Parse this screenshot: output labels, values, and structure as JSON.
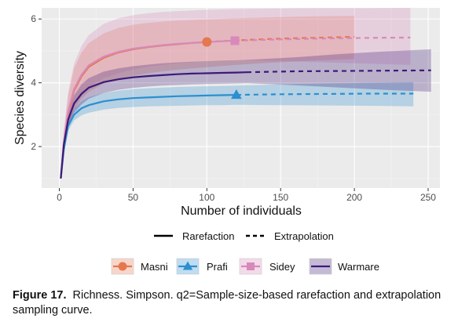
{
  "chart_data": {
    "type": "line",
    "xlabel": "Number of individuals",
    "ylabel": "Species diversity",
    "xlim": [
      -12,
      258
    ],
    "ylim": [
      0.7,
      6.35
    ],
    "xticks": [
      0,
      50,
      100,
      150,
      200,
      250
    ],
    "yticks": [
      2,
      4,
      6
    ],
    "grid": true,
    "legend_linetype": {
      "rarefaction": "Rarefaction",
      "extrapolation": "Extrapolation"
    },
    "series": [
      {
        "name": "Masni",
        "color": "#e5784f",
        "marker": "circle",
        "observed": {
          "x": 100,
          "y": 5.28
        },
        "rarefaction": {
          "x": [
            1,
            3,
            6,
            10,
            15,
            20,
            30,
            40,
            50,
            60,
            70,
            80,
            90,
            100
          ],
          "y": [
            1.0,
            2.1,
            3.05,
            3.75,
            4.2,
            4.5,
            4.78,
            4.95,
            5.05,
            5.12,
            5.17,
            5.21,
            5.25,
            5.28
          ]
        },
        "extrapolation": {
          "x": [
            100,
            120,
            140,
            160,
            180,
            200
          ],
          "y": [
            5.28,
            5.33,
            5.37,
            5.4,
            5.42,
            5.44
          ]
        },
        "band_upper": [
          1.0,
          2.4,
          3.6,
          4.45,
          4.95,
          5.25,
          5.55,
          5.72,
          5.82,
          5.88,
          5.92,
          5.95,
          5.97,
          5.99,
          6.02,
          6.05,
          6.07,
          6.09,
          6.1
        ],
        "band_lower": [
          1.0,
          1.8,
          2.6,
          3.15,
          3.5,
          3.72,
          3.98,
          4.12,
          4.22,
          4.3,
          4.36,
          4.41,
          4.45,
          4.49,
          4.56,
          4.62,
          4.67,
          4.71,
          4.74
        ]
      },
      {
        "name": "Prafi",
        "color": "#2c8fd0",
        "marker": "triangle",
        "observed": {
          "x": 120,
          "y": 3.62
        },
        "rarefaction": {
          "x": [
            1,
            3,
            6,
            10,
            15,
            20,
            30,
            40,
            50,
            60,
            70,
            80,
            90,
            100,
            110,
            120
          ],
          "y": [
            1.0,
            1.9,
            2.65,
            3.0,
            3.2,
            3.3,
            3.42,
            3.48,
            3.52,
            3.54,
            3.56,
            3.58,
            3.59,
            3.6,
            3.61,
            3.62
          ]
        },
        "extrapolation": {
          "x": [
            120,
            150,
            180,
            210,
            240
          ],
          "y": [
            3.62,
            3.64,
            3.65,
            3.66,
            3.66
          ]
        },
        "band_upper": [
          1.0,
          2.0,
          2.8,
          3.18,
          3.42,
          3.55,
          3.68,
          3.75,
          3.8,
          3.83,
          3.85,
          3.87,
          3.88,
          3.89,
          3.9,
          3.91,
          3.95,
          3.98,
          4.0,
          4.02
        ],
        "band_lower": [
          1.0,
          1.8,
          2.5,
          2.82,
          2.98,
          3.06,
          3.16,
          3.21,
          3.24,
          3.26,
          3.27,
          3.28,
          3.29,
          3.3,
          3.3,
          3.31,
          3.3,
          3.29,
          3.28,
          3.26
        ]
      },
      {
        "name": "Sidey",
        "color": "#d889b9",
        "marker": "square",
        "observed": {
          "x": 119,
          "y": 5.32
        },
        "rarefaction": {
          "x": [
            1,
            3,
            6,
            10,
            15,
            20,
            30,
            40,
            50,
            60,
            70,
            80,
            90,
            100,
            110,
            119
          ],
          "y": [
            1.0,
            2.15,
            3.1,
            3.8,
            4.25,
            4.55,
            4.82,
            4.97,
            5.07,
            5.13,
            5.18,
            5.22,
            5.25,
            5.28,
            5.3,
            5.32
          ]
        },
        "extrapolation": {
          "x": [
            119,
            150,
            180,
            210,
            238
          ],
          "y": [
            5.32,
            5.36,
            5.39,
            5.41,
            5.42
          ]
        },
        "band_upper": [
          1.0,
          2.5,
          3.7,
          4.6,
          5.15,
          5.5,
          5.85,
          6.02,
          6.12,
          6.18,
          6.22,
          6.25,
          6.27,
          6.29,
          6.3,
          6.31,
          6.33,
          6.34,
          6.34,
          6.35
        ],
        "band_lower": [
          1.0,
          1.85,
          2.65,
          3.25,
          3.62,
          3.85,
          4.15,
          4.3,
          4.42,
          4.5,
          4.56,
          4.61,
          4.65,
          4.68,
          4.7,
          4.72,
          4.68,
          4.64,
          4.6,
          4.56
        ]
      },
      {
        "name": "Warmare",
        "color": "#3d1a78",
        "marker": "none",
        "observed": {
          "x": 127,
          "y": 4.33
        },
        "rarefaction": {
          "x": [
            1,
            3,
            6,
            10,
            15,
            20,
            30,
            40,
            50,
            60,
            70,
            80,
            90,
            100,
            110,
            120,
            127
          ],
          "y": [
            1.0,
            2.05,
            2.85,
            3.35,
            3.65,
            3.85,
            4.02,
            4.11,
            4.17,
            4.21,
            4.24,
            4.27,
            4.29,
            4.3,
            4.31,
            4.32,
            4.33
          ]
        },
        "extrapolation": {
          "x": [
            127,
            160,
            190,
            220,
            252
          ],
          "y": [
            4.33,
            4.36,
            4.37,
            4.38,
            4.39
          ]
        },
        "band_upper": [
          1.0,
          2.2,
          3.05,
          3.6,
          3.95,
          4.15,
          4.35,
          4.45,
          4.52,
          4.57,
          4.61,
          4.64,
          4.66,
          4.68,
          4.7,
          4.71,
          4.72,
          4.8,
          4.9,
          4.98,
          5.05
        ],
        "band_lower": [
          1.0,
          1.85,
          2.6,
          3.05,
          3.32,
          3.5,
          3.68,
          3.78,
          3.84,
          3.88,
          3.91,
          3.93,
          3.95,
          3.96,
          3.97,
          3.98,
          3.99,
          3.92,
          3.85,
          3.78,
          3.72
        ]
      }
    ]
  },
  "caption": {
    "label": "Figure 17.",
    "text": "Richness. Simpson. q2=Sample-size-based rarefaction and extrapolation sampling curve."
  }
}
